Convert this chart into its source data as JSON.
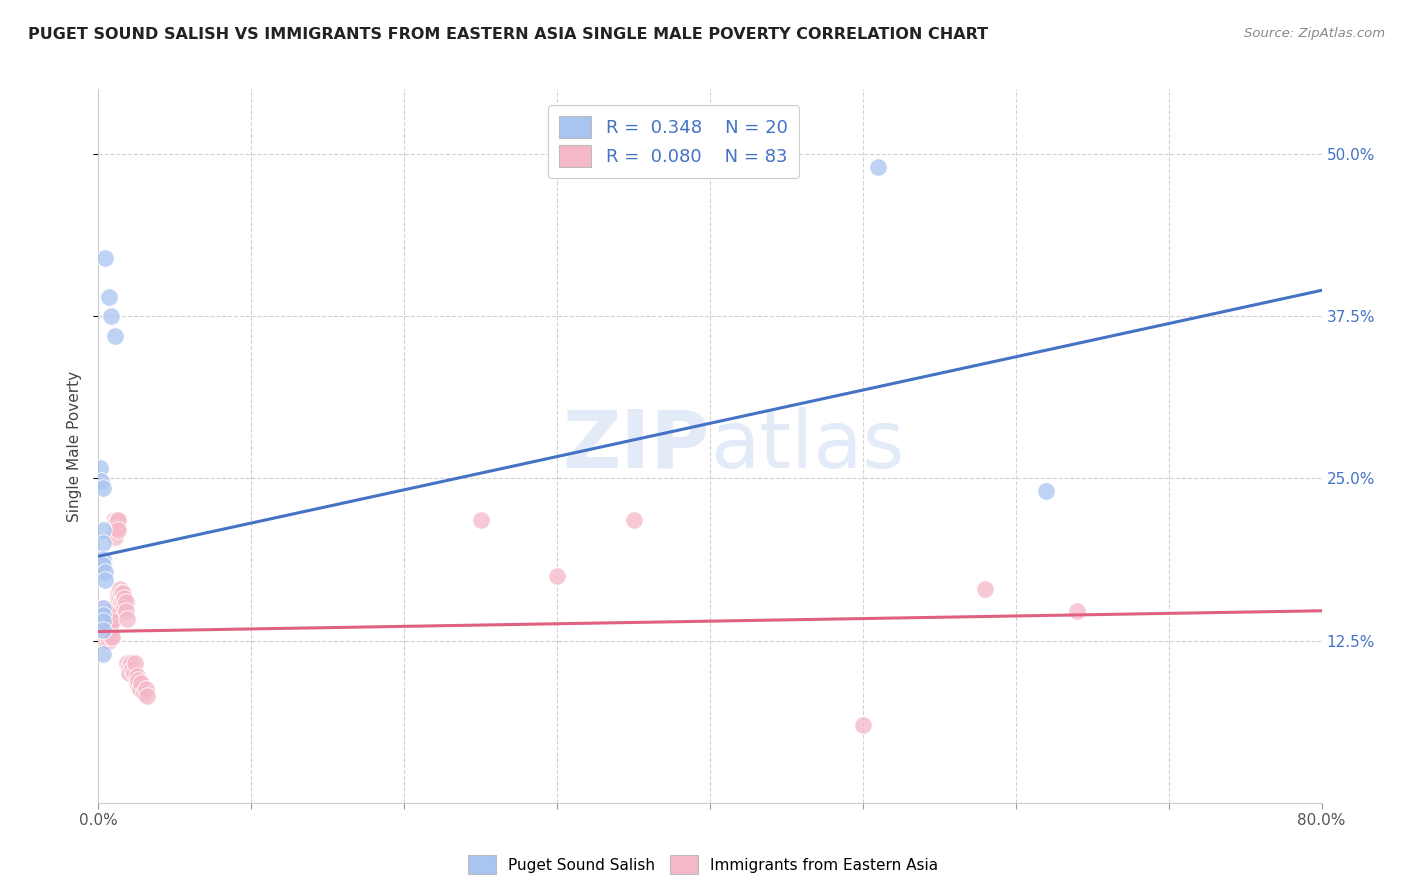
{
  "title": "PUGET SOUND SALISH VS IMMIGRANTS FROM EASTERN ASIA SINGLE MALE POVERTY CORRELATION CHART",
  "source": "Source: ZipAtlas.com",
  "ylabel": "Single Male Poverty",
  "xlim": [
    0.0,
    0.8
  ],
  "ylim": [
    0.0,
    0.55
  ],
  "xticks": [
    0.0,
    0.1,
    0.2,
    0.3,
    0.4,
    0.5,
    0.6,
    0.7,
    0.8
  ],
  "ytick_positions": [
    0.125,
    0.25,
    0.375,
    0.5
  ],
  "ytick_labels": [
    "12.5%",
    "25.0%",
    "37.5%",
    "50.0%"
  ],
  "grid_color": "#cccccc",
  "background_color": "#ffffff",
  "watermark_zip": "ZIP",
  "watermark_atlas": "atlas",
  "legend_r1": "0.348",
  "legend_n1": "20",
  "legend_r2": "0.080",
  "legend_n2": "83",
  "blue_color": "#a8c4f0",
  "pink_color": "#f5b8c8",
  "blue_line_color": "#4472c4",
  "pink_line_color": "#e06080",
  "blue_scatter": [
    [
      0.004,
      0.42
    ],
    [
      0.007,
      0.39
    ],
    [
      0.008,
      0.375
    ],
    [
      0.011,
      0.36
    ],
    [
      0.001,
      0.258
    ],
    [
      0.002,
      0.248
    ],
    [
      0.003,
      0.243
    ],
    [
      0.003,
      0.21
    ],
    [
      0.003,
      0.2
    ],
    [
      0.003,
      0.188
    ],
    [
      0.003,
      0.183
    ],
    [
      0.004,
      0.178
    ],
    [
      0.004,
      0.172
    ],
    [
      0.003,
      0.15
    ],
    [
      0.003,
      0.145
    ],
    [
      0.003,
      0.14
    ],
    [
      0.003,
      0.133
    ],
    [
      0.003,
      0.115
    ],
    [
      0.51,
      0.49
    ],
    [
      0.62,
      0.24
    ]
  ],
  "pink_scatter": [
    [
      0.002,
      0.148
    ],
    [
      0.002,
      0.145
    ],
    [
      0.002,
      0.143
    ],
    [
      0.003,
      0.15
    ],
    [
      0.003,
      0.148
    ],
    [
      0.003,
      0.145
    ],
    [
      0.003,
      0.142
    ],
    [
      0.003,
      0.14
    ],
    [
      0.004,
      0.148
    ],
    [
      0.004,
      0.145
    ],
    [
      0.004,
      0.142
    ],
    [
      0.004,
      0.138
    ],
    [
      0.004,
      0.135
    ],
    [
      0.004,
      0.132
    ],
    [
      0.004,
      0.13
    ],
    [
      0.005,
      0.148
    ],
    [
      0.005,
      0.145
    ],
    [
      0.005,
      0.142
    ],
    [
      0.005,
      0.138
    ],
    [
      0.005,
      0.135
    ],
    [
      0.005,
      0.132
    ],
    [
      0.005,
      0.128
    ],
    [
      0.005,
      0.125
    ],
    [
      0.006,
      0.145
    ],
    [
      0.006,
      0.142
    ],
    [
      0.006,
      0.138
    ],
    [
      0.006,
      0.132
    ],
    [
      0.006,
      0.128
    ],
    [
      0.007,
      0.148
    ],
    [
      0.007,
      0.145
    ],
    [
      0.007,
      0.138
    ],
    [
      0.007,
      0.132
    ],
    [
      0.007,
      0.125
    ],
    [
      0.008,
      0.145
    ],
    [
      0.008,
      0.138
    ],
    [
      0.008,
      0.128
    ],
    [
      0.009,
      0.148
    ],
    [
      0.009,
      0.14
    ],
    [
      0.009,
      0.128
    ],
    [
      0.01,
      0.218
    ],
    [
      0.01,
      0.215
    ],
    [
      0.01,
      0.21
    ],
    [
      0.011,
      0.215
    ],
    [
      0.011,
      0.21
    ],
    [
      0.011,
      0.205
    ],
    [
      0.012,
      0.218
    ],
    [
      0.012,
      0.212
    ],
    [
      0.013,
      0.218
    ],
    [
      0.013,
      0.21
    ],
    [
      0.013,
      0.162
    ],
    [
      0.013,
      0.158
    ],
    [
      0.014,
      0.165
    ],
    [
      0.014,
      0.158
    ],
    [
      0.015,
      0.162
    ],
    [
      0.015,
      0.155
    ],
    [
      0.016,
      0.162
    ],
    [
      0.016,
      0.155
    ],
    [
      0.017,
      0.158
    ],
    [
      0.017,
      0.15
    ],
    [
      0.018,
      0.155
    ],
    [
      0.018,
      0.148
    ],
    [
      0.019,
      0.142
    ],
    [
      0.019,
      0.108
    ],
    [
      0.02,
      0.105
    ],
    [
      0.02,
      0.1
    ],
    [
      0.021,
      0.108
    ],
    [
      0.022,
      0.103
    ],
    [
      0.023,
      0.1
    ],
    [
      0.024,
      0.108
    ],
    [
      0.025,
      0.098
    ],
    [
      0.025,
      0.092
    ],
    [
      0.026,
      0.095
    ],
    [
      0.027,
      0.088
    ],
    [
      0.028,
      0.092
    ],
    [
      0.03,
      0.085
    ],
    [
      0.031,
      0.088
    ],
    [
      0.032,
      0.082
    ],
    [
      0.25,
      0.218
    ],
    [
      0.3,
      0.175
    ],
    [
      0.35,
      0.218
    ],
    [
      0.5,
      0.06
    ],
    [
      0.58,
      0.165
    ],
    [
      0.64,
      0.148
    ]
  ],
  "blue_trend_x": [
    0.0,
    0.8
  ],
  "blue_trend_y": [
    0.19,
    0.395
  ],
  "pink_trend_x": [
    0.0,
    0.8
  ],
  "pink_trend_y": [
    0.132,
    0.148
  ]
}
